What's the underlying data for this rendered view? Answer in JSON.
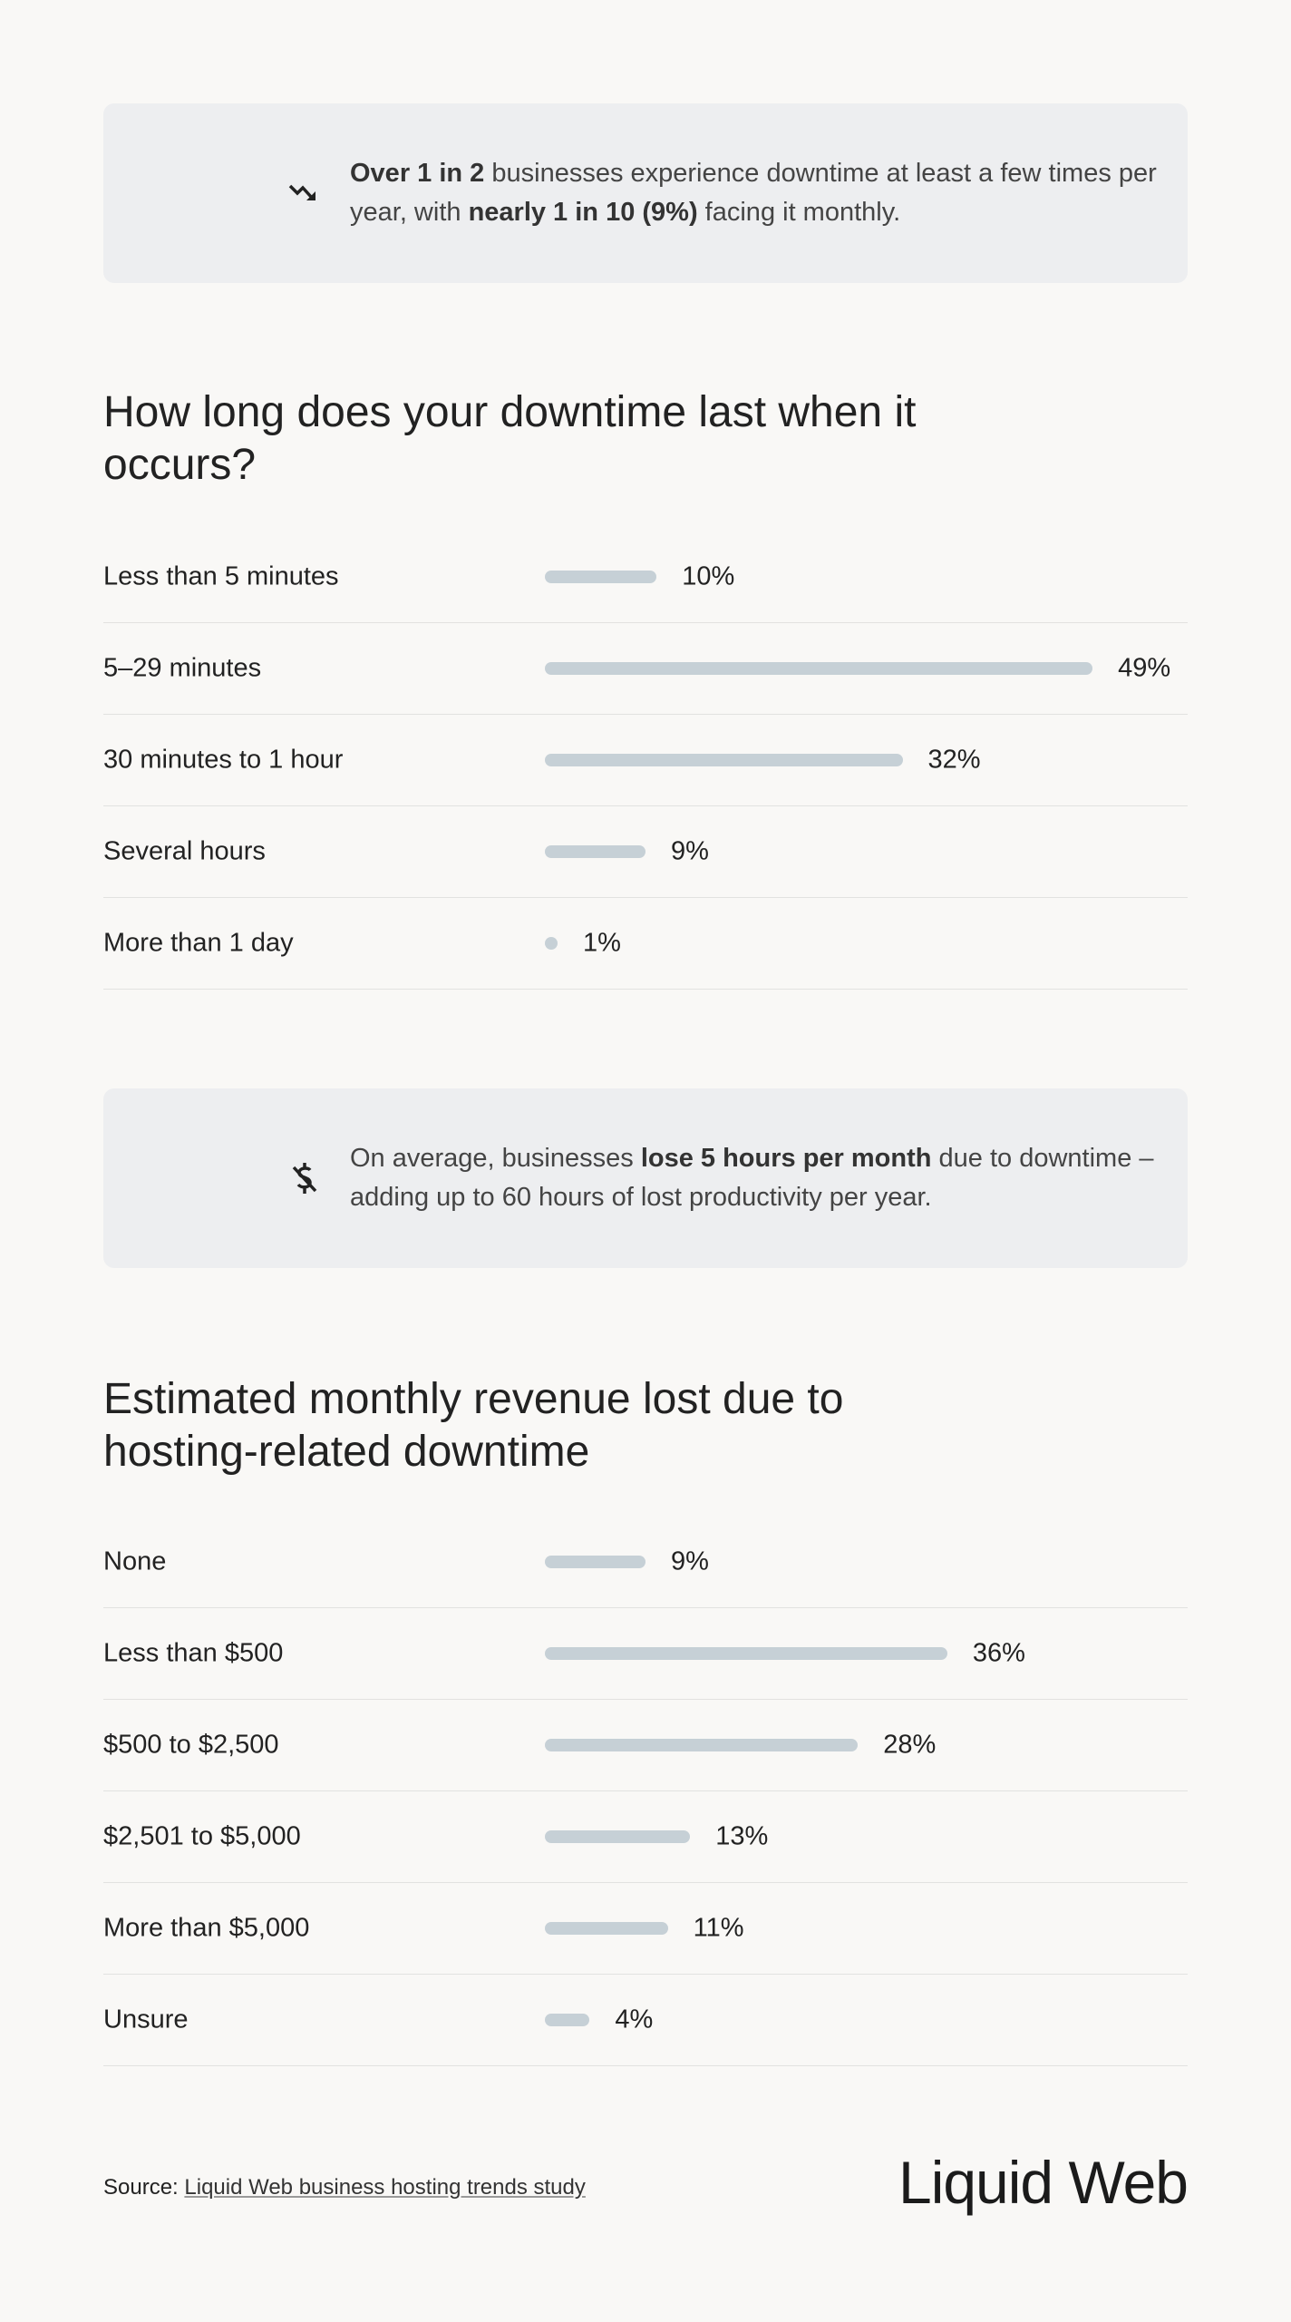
{
  "callouts": [
    {
      "icon": "trending-down-icon",
      "parts": [
        {
          "text": "Over 1 in 2",
          "bold": true
        },
        {
          "text": " businesses experience downtime at least a few times per year, with ",
          "bold": false
        },
        {
          "text": "nearly 1 in 10 (9%)",
          "bold": true
        },
        {
          "text": " facing it monthly.",
          "bold": false
        }
      ]
    },
    {
      "icon": "dollar-off-icon",
      "parts": [
        {
          "text": "On average, businesses ",
          "bold": false
        },
        {
          "text": "lose 5 hours per month",
          "bold": true
        },
        {
          "text": " due to downtime – adding up to 60 hours of lost productivity per year.",
          "bold": false
        }
      ]
    }
  ],
  "chart_data": [
    {
      "type": "bar",
      "orientation": "horizontal",
      "title": "How long does your downtime last when it occurs?",
      "categories": [
        "Less than 5 minutes",
        "5–29 minutes",
        "30 minutes to 1 hour",
        "Several hours",
        "More than 1 day"
      ],
      "values": [
        10,
        49,
        32,
        9,
        1
      ],
      "value_labels": [
        "10%",
        "49%",
        "32%",
        "9%",
        "1%"
      ],
      "bar_color": "#c6d0d6"
    },
    {
      "type": "bar",
      "orientation": "horizontal",
      "title": "Estimated monthly revenue lost due to hosting-related downtime",
      "categories": [
        "None",
        "Less than $500",
        "$500 to $2,500",
        "$2,501 to $5,000",
        "More than $5,000",
        "Unsure"
      ],
      "values": [
        9,
        36,
        28,
        13,
        11,
        4
      ],
      "value_labels": [
        "9%",
        "36%",
        "28%",
        "13%",
        "11%",
        "4%"
      ],
      "bar_color": "#c6d0d6"
    }
  ],
  "footer": {
    "source_prefix": "Source: ",
    "source_link": "Liquid Web business hosting trends study",
    "logo": "Liquid Web"
  }
}
